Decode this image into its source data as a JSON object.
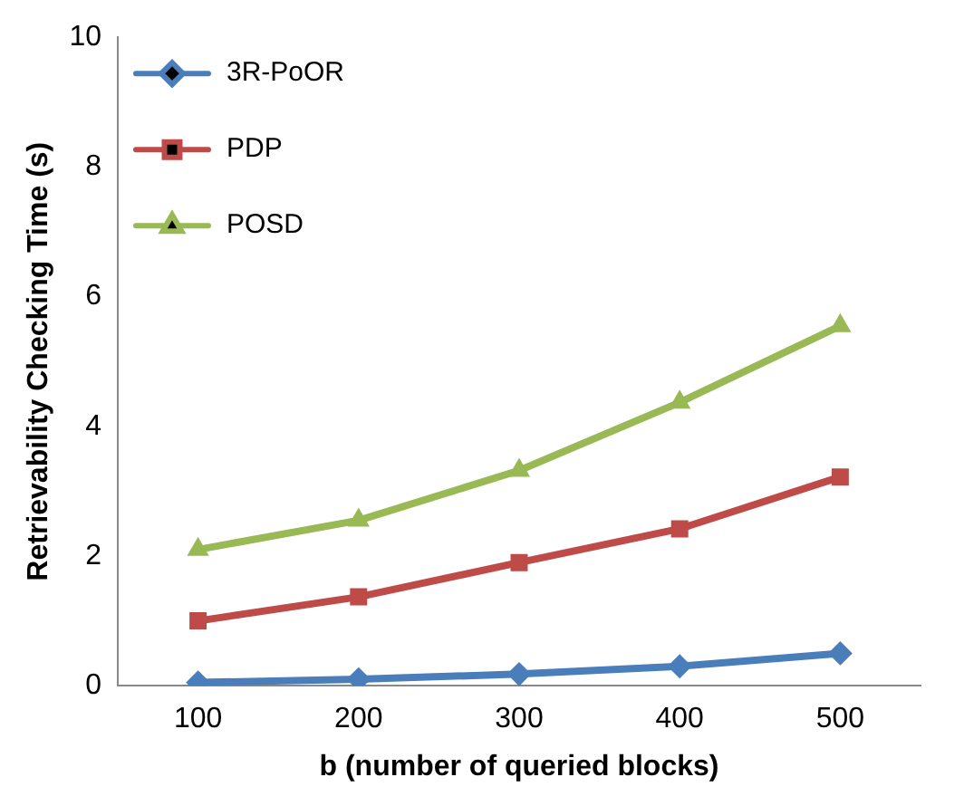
{
  "chart_data": {
    "type": "line",
    "xlabel": "b (number of queried blocks)",
    "ylabel": "Retrievability Checking Time (s)",
    "categories": [
      "100",
      "200",
      "300",
      "400",
      "500"
    ],
    "series": [
      {
        "name": "3R-PoOR",
        "color": "#4a7ebb",
        "marker": "diamond",
        "values": [
          0.05,
          0.1,
          0.18,
          0.3,
          0.5
        ]
      },
      {
        "name": "PDP",
        "color": "#be4b48",
        "marker": "square",
        "values": [
          1.0,
          1.37,
          1.9,
          2.42,
          3.22
        ]
      },
      {
        "name": "POSD",
        "color": "#98b954",
        "marker": "triangle",
        "values": [
          2.1,
          2.55,
          3.32,
          4.37,
          5.55
        ]
      }
    ],
    "ylim": [
      0,
      10
    ],
    "yticks": [
      0,
      2,
      4,
      6,
      8,
      10
    ],
    "grid": false,
    "legend": "top left"
  }
}
